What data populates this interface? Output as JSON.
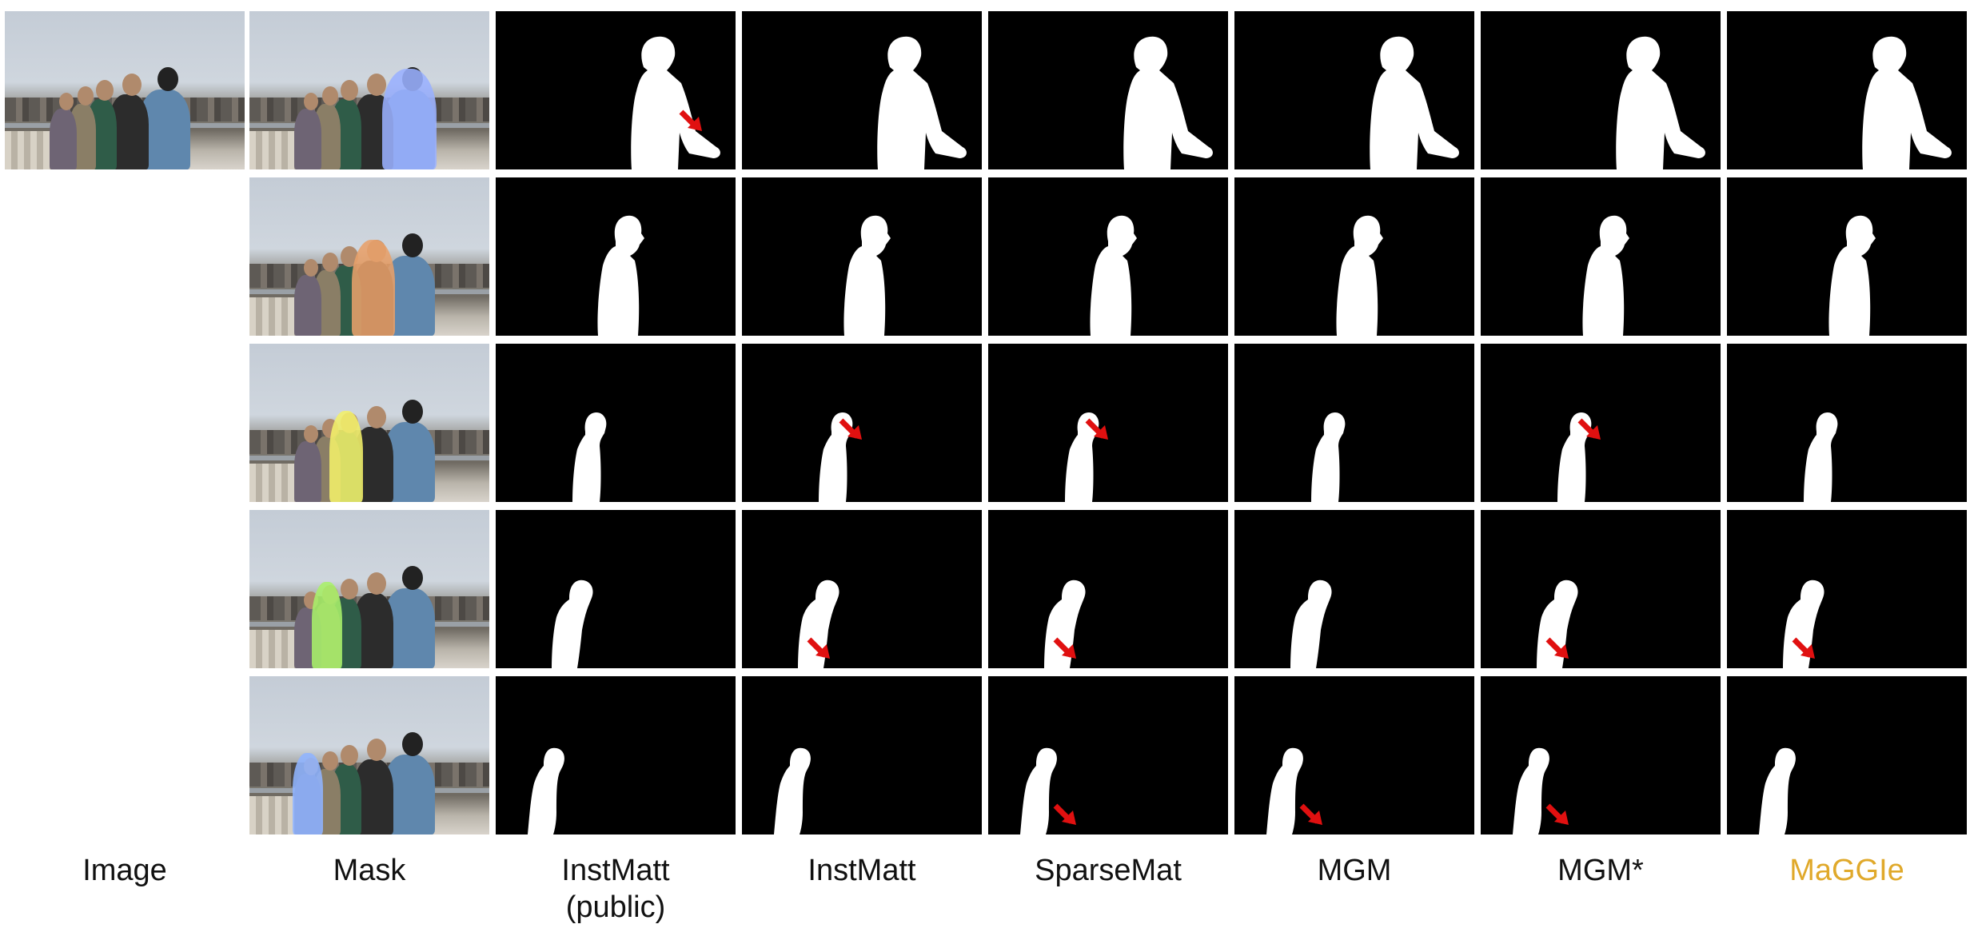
{
  "columns": [
    {
      "key": "image",
      "label": "Image",
      "line2": ""
    },
    {
      "key": "mask",
      "label": "Mask",
      "line2": ""
    },
    {
      "key": "instmatt_public",
      "label": "InstMatt",
      "line2": "(public)"
    },
    {
      "key": "instmatt",
      "label": "InstMatt",
      "line2": ""
    },
    {
      "key": "sparsemat",
      "label": "SparseMat",
      "line2": ""
    },
    {
      "key": "mgm",
      "label": "MGM",
      "line2": ""
    },
    {
      "key": "mgm_star",
      "label": "MGM*",
      "line2": ""
    },
    {
      "key": "maggie",
      "label": "MaGGIe",
      "line2": ""
    }
  ],
  "colors": {
    "maggie_label": "#e0a92b",
    "arrow": "#e01010",
    "mask_row1": "#9ab0ff",
    "mask_row2": "#e8a06a",
    "mask_row3": "#f3f06a",
    "mask_row4": "#a9f06a",
    "mask_row5": "#8fb4ff"
  },
  "rows": [
    {
      "instance": "man-cap",
      "arrows": [
        "instmatt_public"
      ]
    },
    {
      "instance": "man-beard",
      "arrows": []
    },
    {
      "instance": "woman-green",
      "arrows": [
        "instmatt",
        "sparsemat",
        "mgm_star"
      ]
    },
    {
      "instance": "woman-blonde",
      "arrows": [
        "instmatt",
        "sparsemat",
        "mgm_star",
        "maggie"
      ]
    },
    {
      "instance": "woman-left",
      "arrows": [
        "sparsemat",
        "mgm",
        "mgm_star"
      ]
    }
  ]
}
